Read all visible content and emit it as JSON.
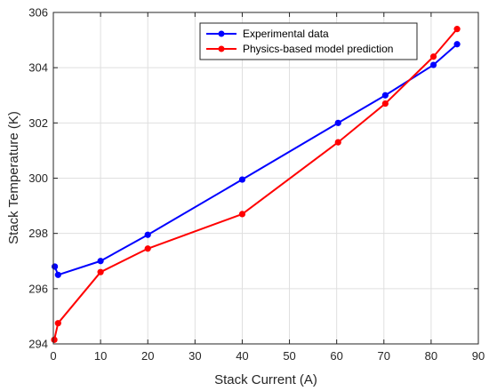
{
  "chart_data": {
    "type": "line",
    "xlabel": "Stack Current (A)",
    "ylabel": "Stack Temperature (K)",
    "xlim": [
      0,
      90
    ],
    "ylim": [
      294,
      306
    ],
    "xticks": [
      0,
      10,
      20,
      30,
      40,
      50,
      60,
      70,
      80,
      90
    ],
    "yticks": [
      294,
      296,
      298,
      300,
      302,
      304,
      306
    ],
    "grid": true,
    "legend_position": "top-right",
    "series": [
      {
        "name": "Experimental data",
        "color": "#0000ff",
        "marker": "circle",
        "x": [
          0.3,
          1,
          10,
          20,
          40,
          60.3,
          70.3,
          80.5,
          85.5
        ],
        "y": [
          296.8,
          296.5,
          297.0,
          297.95,
          299.95,
          302.0,
          303.0,
          304.1,
          304.85
        ]
      },
      {
        "name": "Physics-based model prediction",
        "color": "#ff0000",
        "marker": "circle",
        "x": [
          0.2,
          1,
          10,
          20,
          40,
          60.3,
          70.3,
          80.5,
          85.5
        ],
        "y": [
          294.15,
          294.75,
          296.6,
          297.45,
          298.7,
          301.3,
          302.7,
          304.4,
          305.4
        ]
      }
    ]
  }
}
